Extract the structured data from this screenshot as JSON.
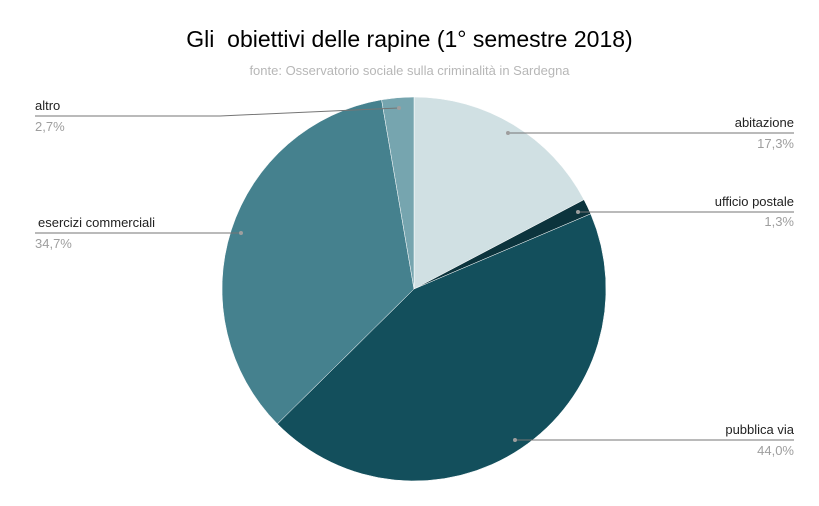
{
  "chart_data": {
    "type": "pie",
    "title": "Gli  obiettivi delle rapine (1° semestre 2018)",
    "subtitle": "fonte: Osservatorio sociale sulla criminalità in Sardegna",
    "start_angle": "top, clockwise",
    "slices": [
      {
        "label": "abitazione",
        "value": 17.3,
        "display": "17,3%",
        "color": "#d0e0e3"
      },
      {
        "label": "ufficio postale",
        "value": 1.3,
        "display": "1,3%",
        "color": "#0c343d"
      },
      {
        "label": "pubblica via",
        "value": 44.0,
        "display": "44,0%",
        "color": "#134f5c"
      },
      {
        "label": "esercizi commerciali",
        "value": 34.7,
        "display": "34,7%",
        "color": "#45818e"
      },
      {
        "label": "altro",
        "value": 2.7,
        "display": "2,7%",
        "color": "#76a5af"
      }
    ],
    "legend_position": "labeled (leader lines)"
  },
  "labels": {
    "abitazione": {
      "name": "abitazione",
      "pct": "17,3%"
    },
    "ufficio_postale": {
      "name": "ufficio postale",
      "pct": "1,3%"
    },
    "pubblica_via": {
      "name": "pubblica via",
      "pct": "44,0%"
    },
    "esercizi": {
      "name": "esercizi commerciali",
      "pct": "34,7%"
    },
    "altro": {
      "name": "altro",
      "pct": "2,7%"
    }
  }
}
